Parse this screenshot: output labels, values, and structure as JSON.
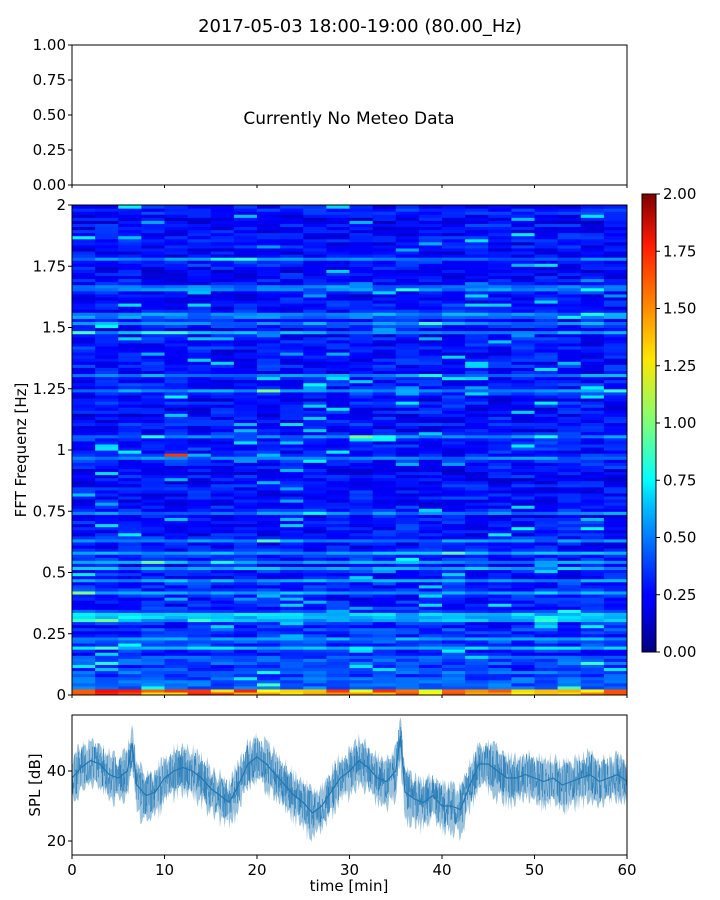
{
  "figure": {
    "title": "2017-05-03 18:00-19:00 (80.00_Hz)"
  },
  "chart_data": [
    {
      "type": "line",
      "panel": "meteo",
      "message": "Currently No Meteo Data",
      "ylim": [
        0,
        1
      ],
      "yticks": [
        "0.00",
        "0.25",
        "0.50",
        "0.75",
        "1.00"
      ],
      "xlabel": "",
      "ylabel": ""
    },
    {
      "type": "heatmap",
      "panel": "spectrogram",
      "ylabel": "FFT Frequenz [Hz]",
      "xlim": [
        0,
        60
      ],
      "ylim": [
        0,
        2
      ],
      "yticks": [
        "0",
        "0.25",
        "0.5",
        "0.75",
        "1",
        "1.25",
        "1.5",
        "1.75",
        "2"
      ],
      "colormap": "jet",
      "colorbar": {
        "range": [
          0,
          2
        ],
        "ticks": [
          "0.00",
          "0.25",
          "0.50",
          "0.75",
          "1.00",
          "1.25",
          "1.50",
          "1.75",
          "2.00"
        ]
      },
      "notable_features": [
        {
          "x": [
            0,
            60
          ],
          "y": [
            0,
            0.03
          ],
          "value": 1.6
        },
        {
          "x": [
            10,
            13
          ],
          "y": [
            0.98,
            0.99
          ],
          "value": 1.7
        },
        {
          "x": [
            30,
            35
          ],
          "y": [
            1.04,
            1.06
          ],
          "value": 0.9
        },
        {
          "x": [
            0,
            60
          ],
          "y": [
            0.31,
            0.34
          ],
          "value": 0.7
        }
      ]
    },
    {
      "type": "line",
      "panel": "spl",
      "xlabel": "time [min]",
      "ylabel": "SPL [dB]",
      "xlim": [
        0,
        60
      ],
      "ylim": [
        16,
        56
      ],
      "xticks": [
        "0",
        "10",
        "20",
        "30",
        "40",
        "50",
        "60"
      ],
      "yticks": [
        "20",
        "40"
      ],
      "color": "#1f77b4",
      "series": [
        {
          "x": [
            0,
            1,
            2,
            3,
            4,
            5,
            6,
            6.5,
            7,
            8,
            9,
            10,
            11,
            12,
            13,
            14,
            15,
            16,
            17,
            18,
            19,
            20,
            21,
            22,
            23,
            24,
            25,
            26,
            27,
            28,
            29,
            30,
            31,
            32,
            33,
            34,
            35,
            35.5,
            36,
            37,
            38,
            39,
            40,
            41,
            42,
            43,
            44,
            45,
            46,
            47,
            48,
            49,
            50,
            51,
            52,
            53,
            54,
            55,
            56,
            57,
            58,
            59,
            60
          ],
          "values": [
            38,
            41,
            43,
            42,
            39,
            38,
            40,
            48,
            36,
            33,
            34,
            38,
            40,
            41,
            40,
            38,
            35,
            33,
            31,
            36,
            42,
            44,
            42,
            39,
            36,
            33,
            31,
            28,
            30,
            34,
            38,
            40,
            43,
            41,
            38,
            37,
            40,
            50,
            34,
            32,
            31,
            33,
            30,
            30,
            29,
            36,
            42,
            42,
            40,
            38,
            38,
            39,
            38,
            37,
            38,
            36,
            37,
            38,
            39,
            37,
            38,
            39,
            37
          ]
        }
      ]
    }
  ]
}
